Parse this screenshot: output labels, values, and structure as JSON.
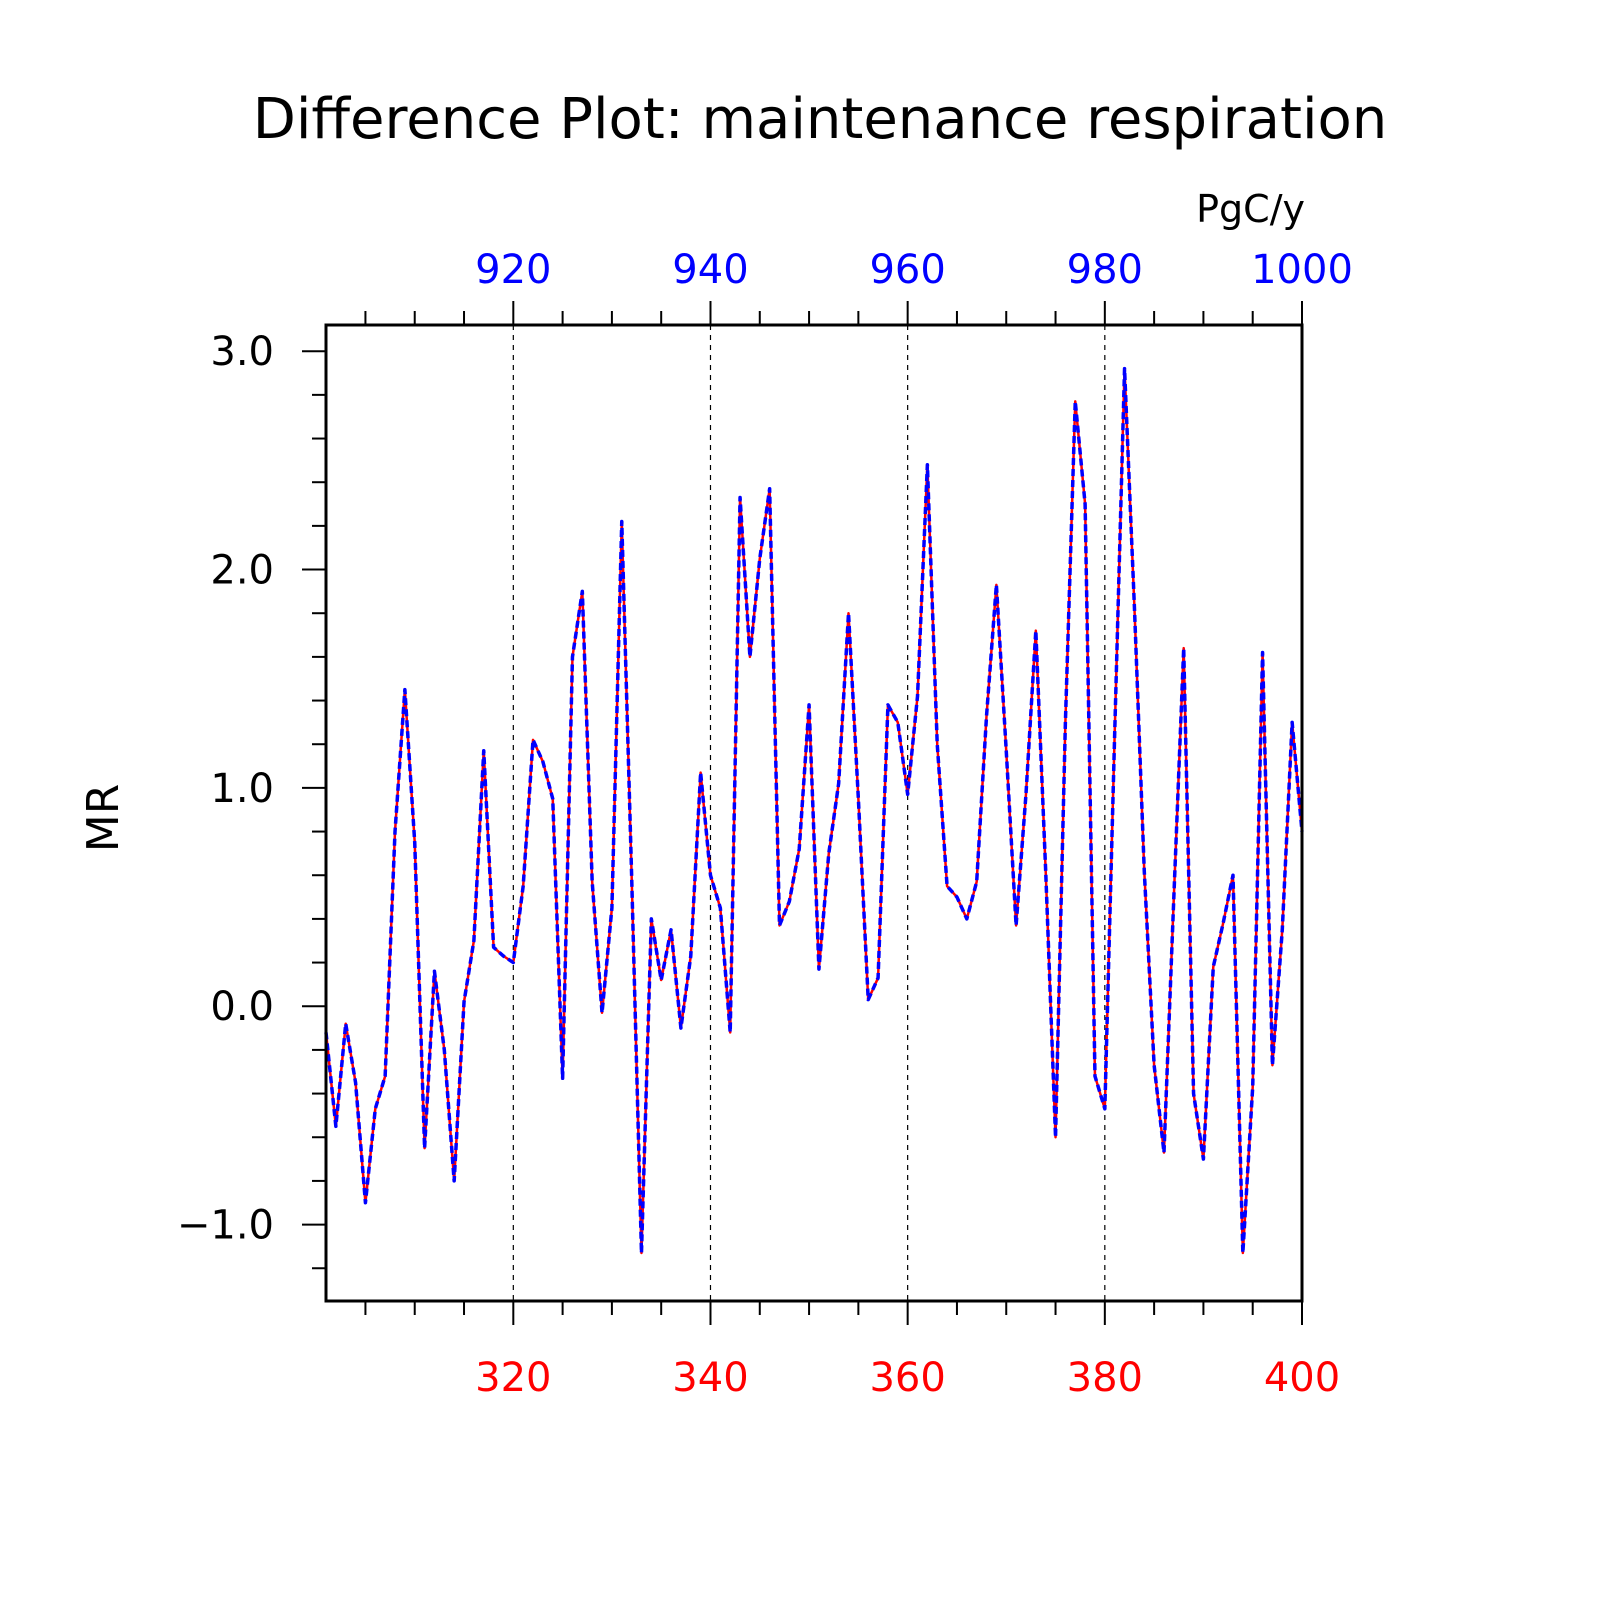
{
  "chart_data": {
    "type": "line",
    "title": "Difference Plot: maintenance respiration",
    "units": "PgC/y",
    "ylabel": "MR",
    "xlim_bottom": [
      301,
      400
    ],
    "xlim_top": [
      901,
      1000
    ],
    "ylim": [
      -1.35,
      3.12
    ],
    "bottom_ticks": [
      320,
      340,
      360,
      380,
      400
    ],
    "top_ticks": [
      920,
      940,
      960,
      980,
      1000
    ],
    "y_ticks": [
      3.0,
      2.0,
      1.0,
      0.0,
      -1.0
    ],
    "y_tick_labels": [
      "3.0",
      "2.0",
      "1.0",
      "0.0",
      "−1.0"
    ],
    "vertical_grid": true,
    "series": [
      {
        "color": "#ff0000",
        "style": "solid",
        "axis": "bottom",
        "x_start": 301,
        "values": [
          -0.12,
          -0.55,
          -0.08,
          -0.35,
          -0.9,
          -0.47,
          -0.32,
          0.8,
          1.45,
          0.75,
          -0.65,
          0.16,
          -0.2,
          -0.8,
          0.02,
          0.3,
          1.17,
          0.27,
          0.23,
          0.2,
          0.55,
          1.22,
          1.12,
          0.95,
          -0.33,
          1.6,
          1.9,
          0.57,
          -0.03,
          0.45,
          2.22,
          0.6,
          -1.13,
          0.4,
          0.12,
          0.35,
          -0.1,
          0.23,
          1.07,
          0.6,
          0.45,
          -0.12,
          2.33,
          1.6,
          2.05,
          2.37,
          0.37,
          0.48,
          0.72,
          1.38,
          0.17,
          0.7,
          1.02,
          1.8,
          0.95,
          0.03,
          0.13,
          1.38,
          1.3,
          0.97,
          1.42,
          2.48,
          1.2,
          0.55,
          0.5,
          0.4,
          0.57,
          1.33,
          1.93,
          1.17,
          0.37,
          0.97,
          1.72,
          0.62,
          -0.6,
          1.3,
          2.77,
          2.3,
          -0.32,
          -0.47,
          1.25,
          2.92,
          1.83,
          0.62,
          -0.27,
          -0.67,
          0.5,
          1.64,
          -0.4,
          -0.7,
          0.18,
          0.38,
          0.6,
          -1.13,
          -0.37,
          1.62,
          -0.27,
          0.35,
          1.3,
          0.8
        ]
      },
      {
        "color": "#0000ff",
        "style": "dashed",
        "axis": "top",
        "x_start": 901,
        "values": [
          -0.12,
          -0.55,
          -0.08,
          -0.35,
          -0.9,
          -0.47,
          -0.32,
          0.8,
          1.45,
          0.75,
          -0.65,
          0.16,
          -0.2,
          -0.8,
          0.02,
          0.3,
          1.17,
          0.27,
          0.23,
          0.2,
          0.55,
          1.22,
          1.12,
          0.95,
          -0.33,
          1.6,
          1.9,
          0.57,
          -0.03,
          0.45,
          2.22,
          0.6,
          -1.13,
          0.4,
          0.12,
          0.35,
          -0.1,
          0.23,
          1.07,
          0.6,
          0.45,
          -0.12,
          2.33,
          1.6,
          2.05,
          2.37,
          0.37,
          0.48,
          0.72,
          1.38,
          0.17,
          0.7,
          1.02,
          1.8,
          0.95,
          0.03,
          0.13,
          1.38,
          1.3,
          0.97,
          1.42,
          2.48,
          1.2,
          0.55,
          0.5,
          0.4,
          0.57,
          1.33,
          1.93,
          1.17,
          0.37,
          0.97,
          1.72,
          0.62,
          -0.6,
          1.3,
          2.77,
          2.3,
          -0.32,
          -0.47,
          1.25,
          2.92,
          1.83,
          0.62,
          -0.27,
          -0.67,
          0.5,
          1.64,
          -0.4,
          -0.7,
          0.18,
          0.38,
          0.6,
          -1.13,
          -0.37,
          1.62,
          -0.27,
          0.35,
          1.3,
          0.8
        ]
      }
    ]
  },
  "colors": {
    "bottom_axis": "#ff0000",
    "top_axis": "#0000ff",
    "axes": "#000000"
  }
}
